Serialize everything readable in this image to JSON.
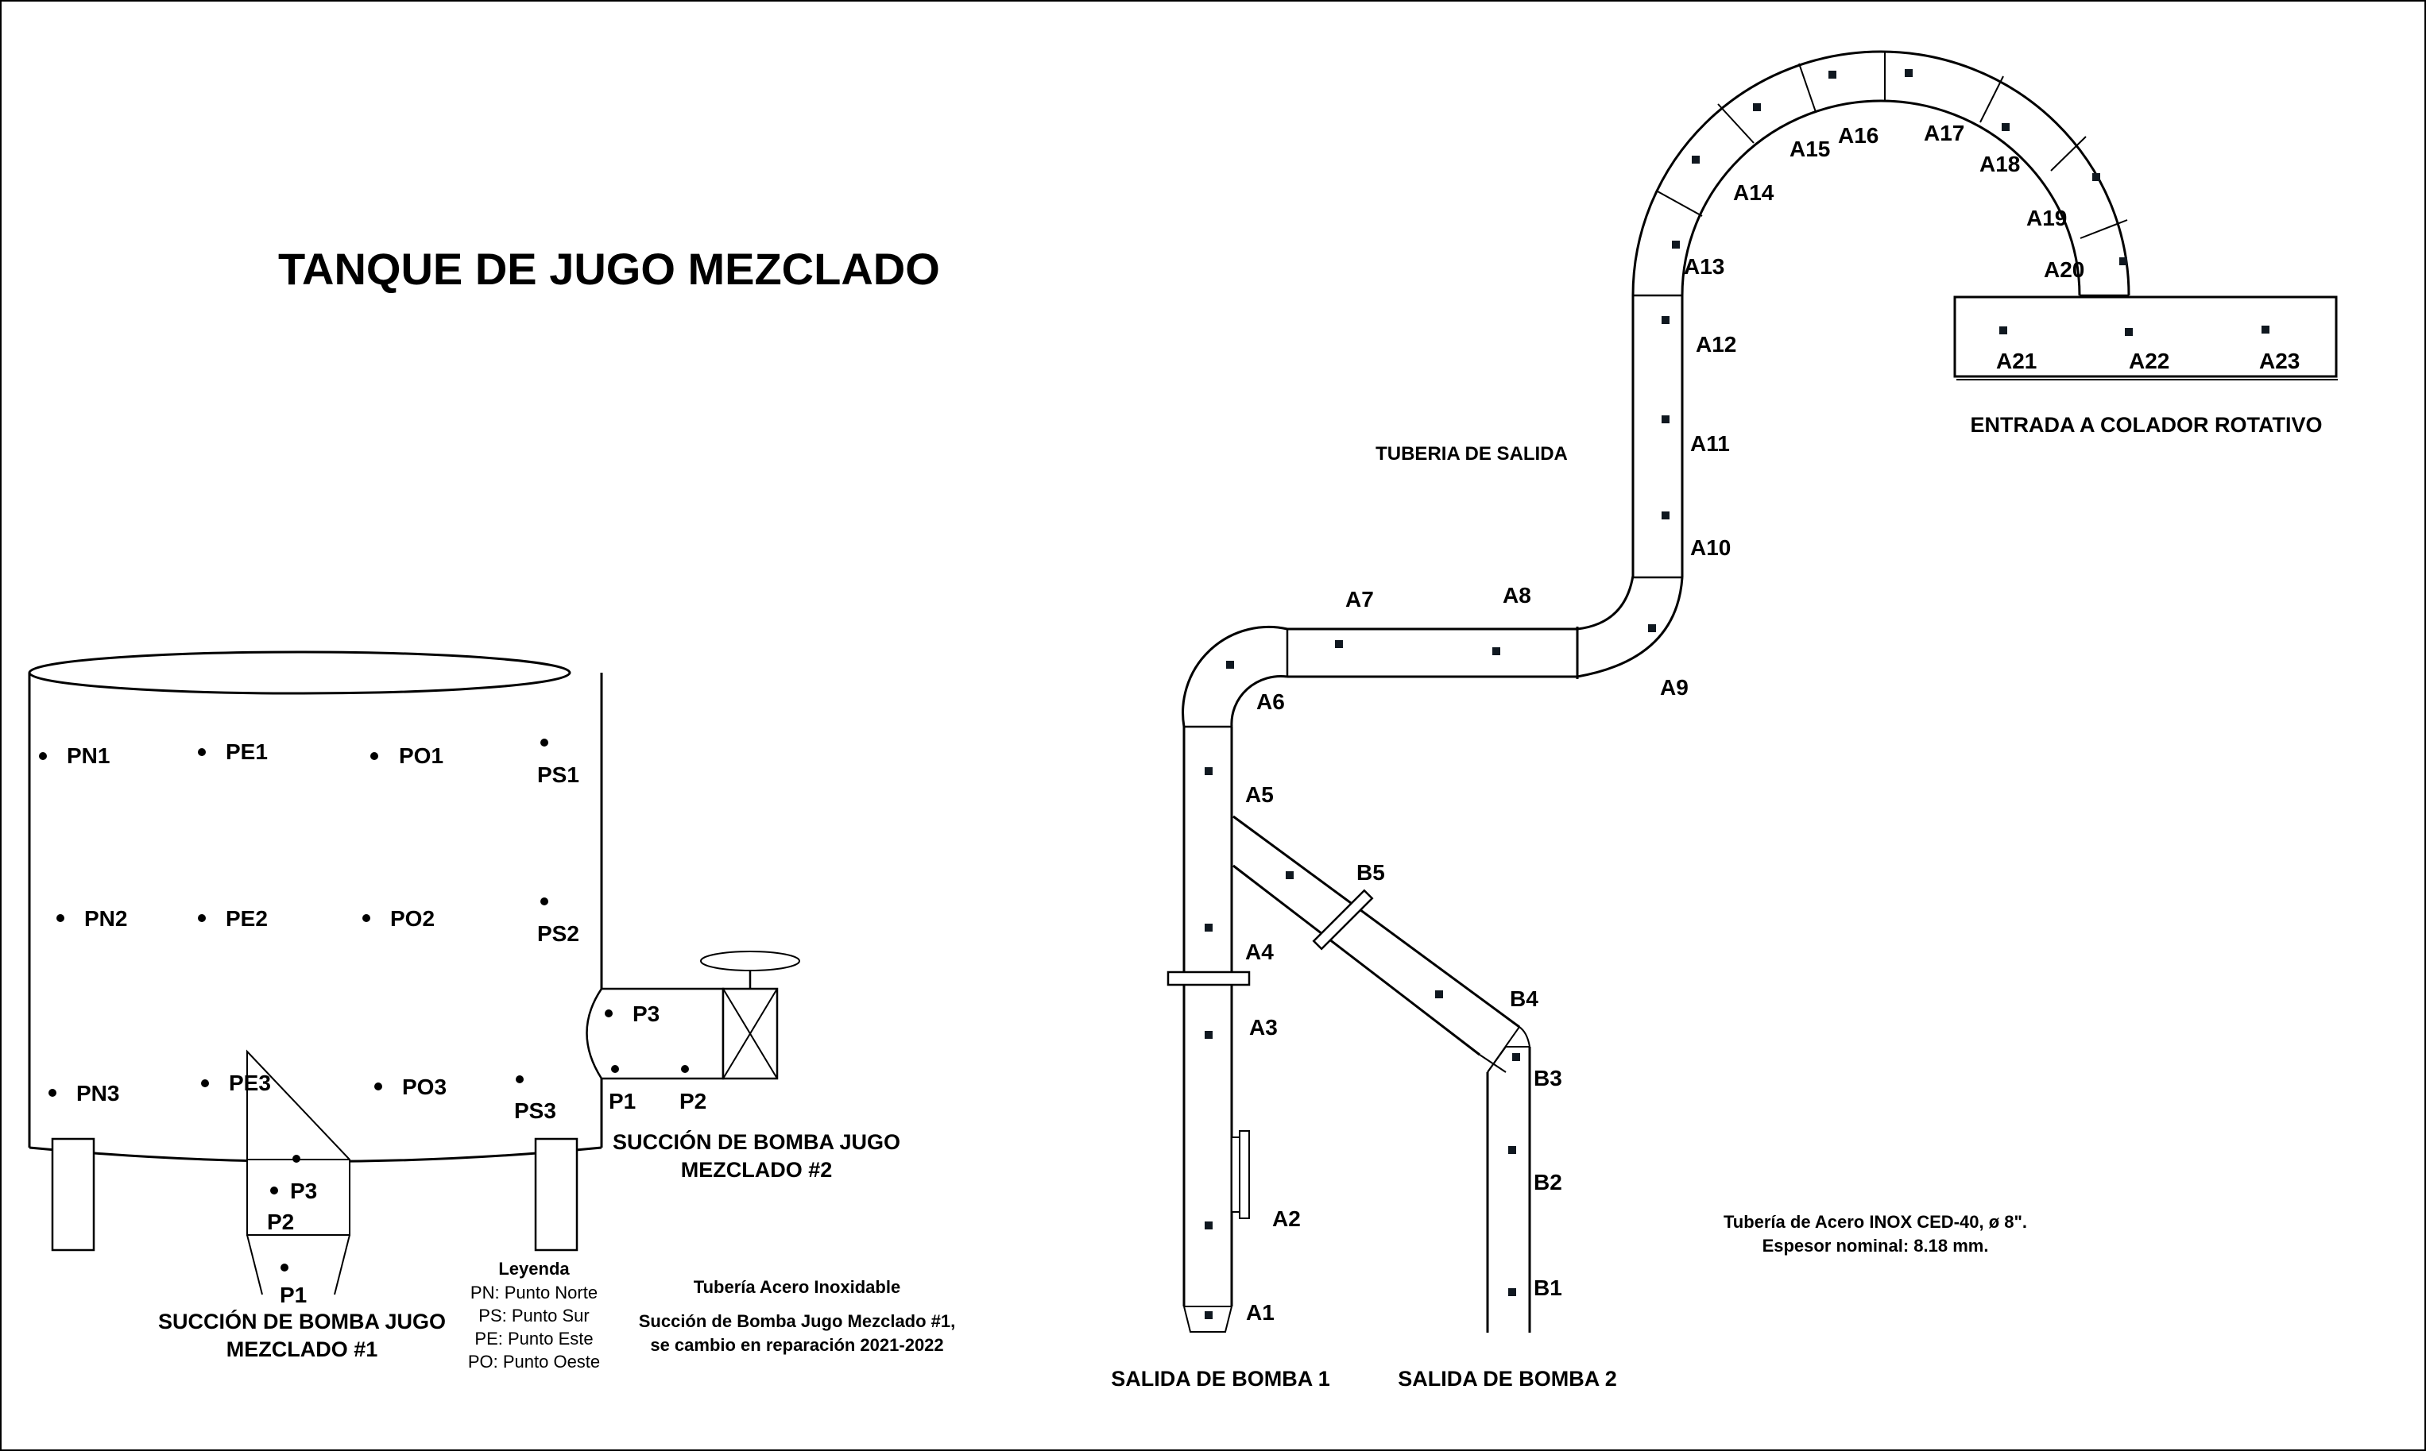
{
  "title": "TANQUE DE JUGO MEZCLADO",
  "tank": {
    "points": [
      "PN1",
      "PE1",
      "PO1",
      "PS1",
      "PN2",
      "PE2",
      "PO2",
      "PS2",
      "PN3",
      "PE3",
      "PO3",
      "PS3"
    ],
    "cone_points": [
      "P3",
      "P2",
      "P1"
    ],
    "pump1_caption_line1": "SUCCIÓN DE BOMBA JUGO",
    "pump1_caption_line2": "MEZCLADO #1"
  },
  "pump2": {
    "points": [
      "P3",
      "P1",
      "P2"
    ],
    "caption_line1": "SUCCIÓN DE BOMBA JUGO",
    "caption_line2": "MEZCLADO #2"
  },
  "legend": {
    "title": "Leyenda",
    "items": [
      "PN: Punto Norte",
      "PS: Punto Sur",
      "PE: Punto Este",
      "PO: Punto Oeste"
    ]
  },
  "notes": {
    "material": "Tubería Acero Inoxidable",
    "change_line1": "Succión de Bomba Jugo Mezclado #1,",
    "change_line2": "se cambio en reparación 2021-2022",
    "spec_line1": "Tubería de Acero INOX CED-40, ø 8\".",
    "spec_line2": "Espesor nominal: 8.18 mm."
  },
  "piping": {
    "section_title": "TUBERIA DE SALIDA",
    "entry_title": "ENTRADA A COLADOR ROTATIVO",
    "pump1_exit": "SALIDA DE BOMBA 1",
    "pump2_exit": "SALIDA DE BOMBA 2",
    "a_points": [
      "A1",
      "A2",
      "A3",
      "A4",
      "A5",
      "A6",
      "A7",
      "A8",
      "A9",
      "A10",
      "A11",
      "A12",
      "A13",
      "A14",
      "A15",
      "A16",
      "A17",
      "A18",
      "A19",
      "A20",
      "A21",
      "A22",
      "A23"
    ],
    "b_points": [
      "B1",
      "B2",
      "B3",
      "B4",
      "B5"
    ]
  }
}
